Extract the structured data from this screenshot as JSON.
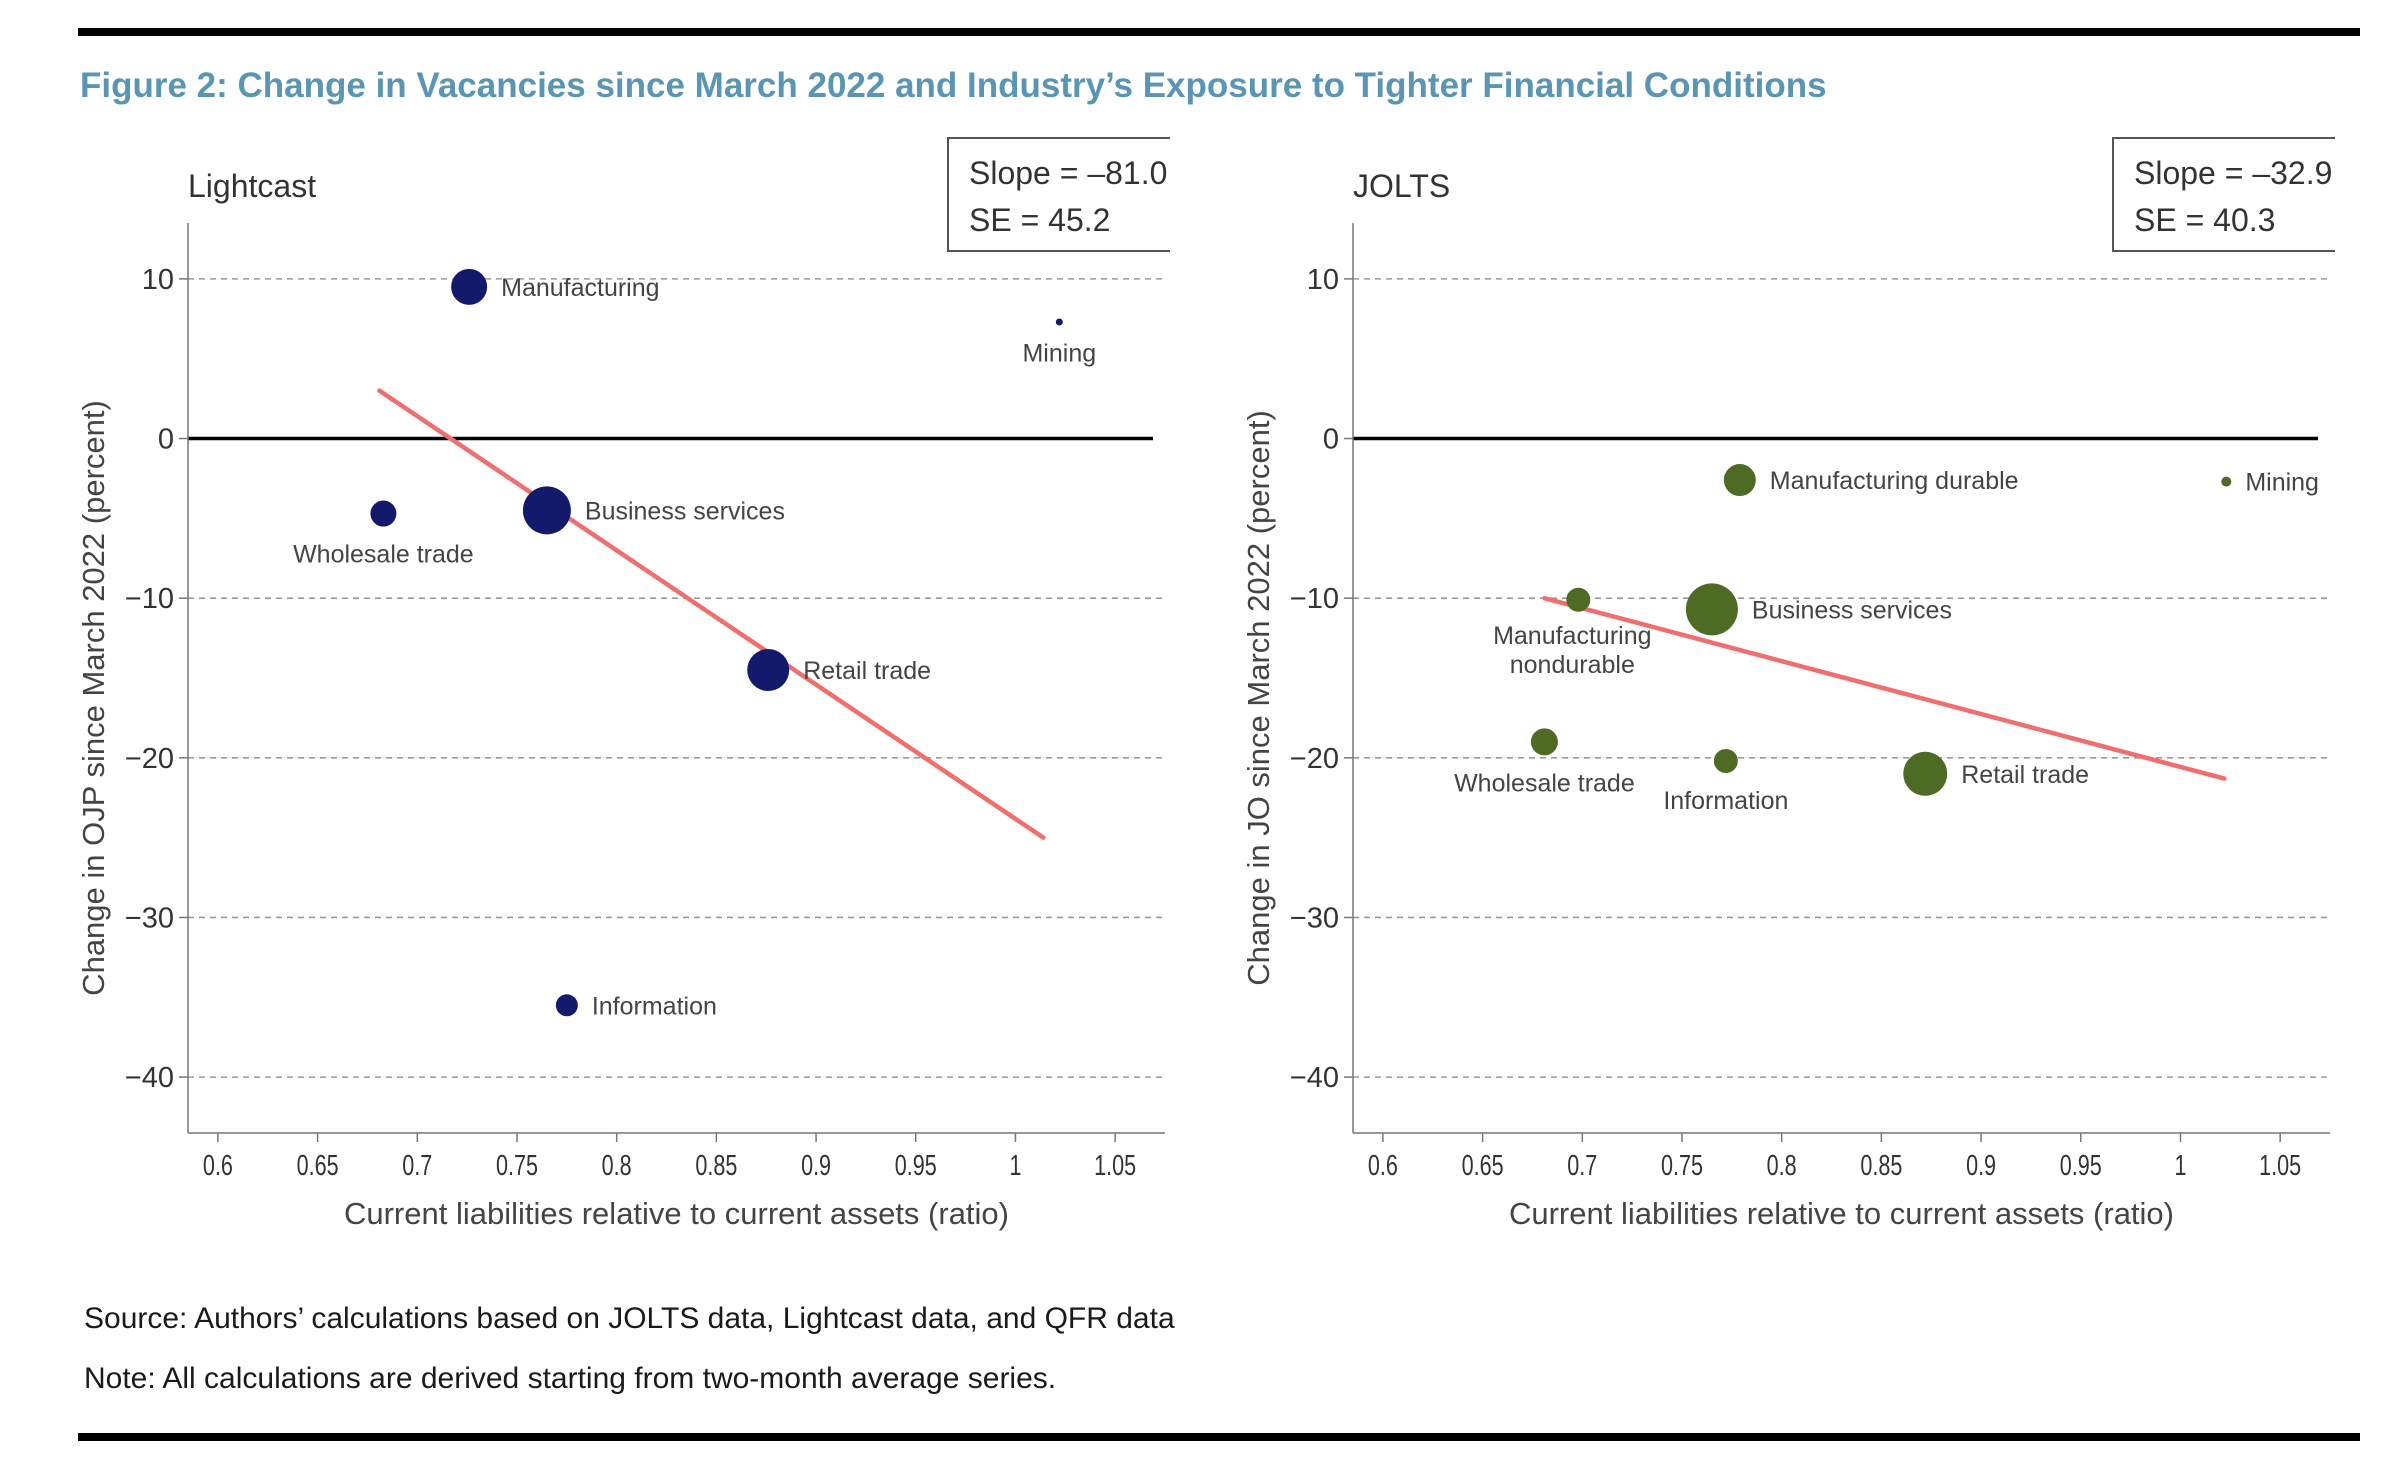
{
  "figure": {
    "title": "Figure 2: Change in Vacancies since March 2022 and Industry’s Exposure to Tighter Financial Conditions",
    "title_color": "#5a96b4"
  },
  "footer": {
    "source": "Source: Authors’ calculations based on JOLTS data, Lightcast data, and QFR data",
    "note": "Note: All calculations are derived starting from two-month average series."
  },
  "chart_data": [
    {
      "type": "scatter",
      "panel_title": "Lightcast",
      "xlabel": "Current liabilities relative to current assets (ratio)",
      "ylabel": "Change in OJP since March 2022 (percent)",
      "xlim": [
        0.585,
        1.075
      ],
      "ylim": [
        -43.5,
        13.5
      ],
      "x_ticks": [
        0.6,
        0.65,
        0.7,
        0.75,
        0.8,
        0.85,
        0.9,
        0.95,
        1,
        1.05
      ],
      "x_tick_labels": [
        "0.6",
        "0.65",
        "0.7",
        "0.75",
        "0.8",
        "0.85",
        "0.9",
        "0.95",
        "1",
        "1.05"
      ],
      "y_ticks": [
        10,
        0,
        -10,
        -20,
        -30,
        -40
      ],
      "y_tick_labels": [
        "10",
        "0",
        "−10",
        "−20",
        "−30",
        "−40"
      ],
      "grid": "horizontal-dashed",
      "color": "#141a6b",
      "fit_color": "#f06e6e",
      "stats": {
        "slope": "Slope = –81.0",
        "se": "SE = 45.2"
      },
      "points": [
        {
          "label": "Manufacturing",
          "x": 0.726,
          "y": 9.5,
          "size": 18,
          "label_pos": "right"
        },
        {
          "label": "Mining",
          "x": 1.022,
          "y": 7.3,
          "size": 3.5,
          "label_pos": "below"
        },
        {
          "label": "Wholesale trade",
          "x": 0.683,
          "y": -4.7,
          "size": 13,
          "label_pos": "below"
        },
        {
          "label": "Business services",
          "x": 0.765,
          "y": -4.5,
          "size": 24,
          "label_pos": "right"
        },
        {
          "label": "Retail trade",
          "x": 0.876,
          "y": -14.5,
          "size": 21,
          "label_pos": "right"
        },
        {
          "label": "Information",
          "x": 0.775,
          "y": -35.5,
          "size": 11,
          "label_pos": "right"
        }
      ],
      "fit": {
        "x": [
          0.681,
          1.014
        ],
        "y": [
          3.0,
          -25.0
        ]
      }
    },
    {
      "type": "scatter",
      "panel_title": "JOLTS",
      "xlabel": "Current liabilities relative to current assets (ratio)",
      "ylabel": "Change in JO since March 2022 (percent)",
      "xlim": [
        0.585,
        1.075
      ],
      "ylim": [
        -43.5,
        13.5
      ],
      "x_ticks": [
        0.6,
        0.65,
        0.7,
        0.75,
        0.8,
        0.85,
        0.9,
        0.95,
        1,
        1.05
      ],
      "x_tick_labels": [
        "0.6",
        "0.65",
        "0.7",
        "0.75",
        "0.8",
        "0.85",
        "0.9",
        "0.95",
        "1",
        "1.05"
      ],
      "y_ticks": [
        10,
        0,
        -10,
        -20,
        -30,
        -40
      ],
      "y_tick_labels": [
        "10",
        "0",
        "−10",
        "−20",
        "−30",
        "−40"
      ],
      "grid": "horizontal-dashed",
      "color": "#4d6b23",
      "fit_color": "#f06e6e",
      "stats": {
        "slope": "Slope = –32.9",
        "se": "SE = 40.3"
      },
      "points": [
        {
          "label": "Manufacturing durable",
          "x": 0.779,
          "y": -2.6,
          "size": 16,
          "label_pos": "right"
        },
        {
          "label": "Mining",
          "x": 1.023,
          "y": -2.7,
          "size": 5,
          "label_pos": "right"
        },
        {
          "label": "Manufacturing nondurable",
          "x": 0.698,
          "y": -10.1,
          "size": 12,
          "label_pos": "below"
        },
        {
          "label": "Business services",
          "x": 0.765,
          "y": -10.7,
          "size": 26,
          "label_pos": "right"
        },
        {
          "label": "Wholesale trade",
          "x": 0.681,
          "y": -19.0,
          "size": 13.5,
          "label_pos": "below"
        },
        {
          "label": "Information",
          "x": 0.772,
          "y": -20.2,
          "size": 12,
          "label_pos": "below"
        },
        {
          "label": "Retail trade",
          "x": 0.872,
          "y": -21.0,
          "size": 22,
          "label_pos": "right"
        }
      ],
      "fit": {
        "x": [
          0.681,
          1.022
        ],
        "y": [
          -10.0,
          -21.3
        ]
      }
    }
  ]
}
